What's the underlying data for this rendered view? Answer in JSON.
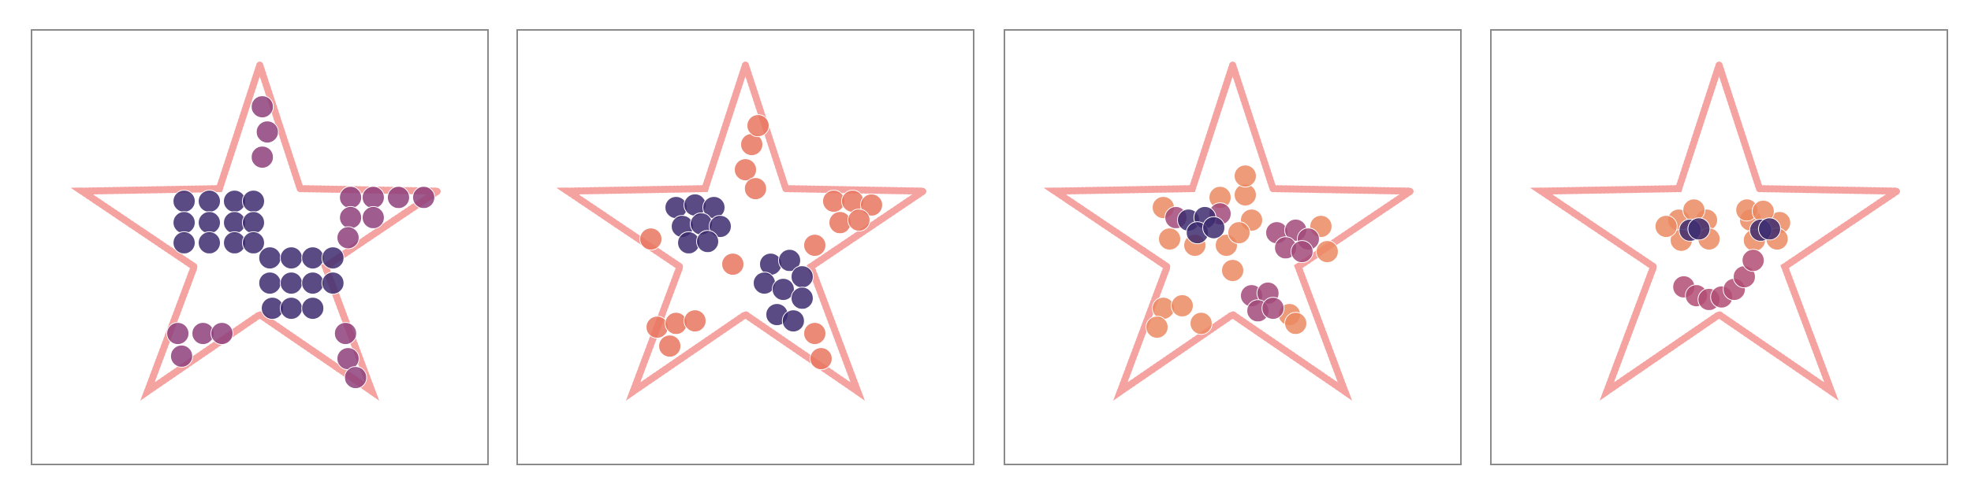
{
  "chart_data": [
    {
      "type": "scatter",
      "xlim": [
        -1.81,
        1.81
      ],
      "ylim": [
        -1.74,
        1.71
      ],
      "series": [
        {
          "type": "line",
          "color": "#f5a3a0",
          "x": [
            0,
            0.32,
            1.41,
            0.52,
            0.89,
            0,
            -0.89,
            -0.52,
            -1.41,
            -0.32,
            0
          ],
          "y": [
            1.43,
            0.45,
            0.43,
            -0.17,
            -1.16,
            -0.55,
            -1.16,
            -0.17,
            0.43,
            0.45,
            1.43
          ]
        },
        {
          "type": "scatter",
          "color": "#8e3f7b",
          "x": [
            0.72,
            0.9,
            1.1,
            1.3,
            0.72,
            0.9,
            0.7,
            0.02,
            0.06,
            0.02,
            -0.65,
            -0.45,
            -0.3,
            -0.62,
            0.68,
            0.7,
            0.76
          ],
          "y": [
            0.38,
            0.38,
            0.38,
            0.38,
            0.22,
            0.22,
            0.06,
            1.1,
            0.9,
            0.7,
            -0.7,
            -0.7,
            -0.7,
            -0.88,
            -0.7,
            -0.9,
            -1.05
          ]
        },
        {
          "type": "scatter",
          "color": "#3d2b6e",
          "x": [
            -0.6,
            -0.4,
            -0.2,
            -0.05,
            -0.6,
            -0.4,
            -0.2,
            -0.05,
            -0.6,
            -0.4,
            -0.2,
            -0.05,
            0.08,
            0.25,
            0.42,
            0.58,
            0.08,
            0.25,
            0.42,
            0.58,
            0.1,
            0.25,
            0.42
          ],
          "y": [
            0.35,
            0.35,
            0.35,
            0.35,
            0.18,
            0.18,
            0.18,
            0.18,
            0.02,
            0.02,
            0.02,
            0.02,
            -0.1,
            -0.1,
            -0.1,
            -0.1,
            -0.3,
            -0.3,
            -0.3,
            -0.3,
            -0.5,
            -0.5,
            -0.5
          ]
        }
      ]
    },
    {
      "type": "scatter",
      "xlim": [
        -1.81,
        1.81
      ],
      "ylim": [
        -1.74,
        1.71
      ],
      "series": [
        {
          "type": "line",
          "color": "#f5a3a0",
          "x": [
            0,
            0.32,
            1.41,
            0.52,
            0.89,
            0,
            -0.89,
            -0.52,
            -1.41,
            -0.32,
            0
          ],
          "y": [
            1.43,
            0.45,
            0.43,
            -0.17,
            -1.16,
            -0.55,
            -1.16,
            -0.17,
            0.43,
            0.45,
            1.43
          ]
        },
        {
          "type": "scatter",
          "color": "#e8755f",
          "x": [
            0.7,
            0.85,
            1.0,
            0.75,
            0.9,
            0.0,
            0.05,
            0.1,
            0.08,
            -0.7,
            -0.55,
            -0.4,
            -0.6,
            0.55,
            0.6,
            -0.75,
            -0.1,
            0.55
          ],
          "y": [
            0.35,
            0.35,
            0.32,
            0.18,
            0.2,
            0.6,
            0.8,
            0.95,
            0.45,
            -0.65,
            -0.62,
            -0.6,
            -0.8,
            -0.7,
            -0.9,
            0.05,
            -0.15,
            0.0
          ]
        },
        {
          "type": "scatter",
          "color": "#3d2b6e",
          "x": [
            -0.55,
            -0.4,
            -0.25,
            -0.5,
            -0.35,
            -0.2,
            -0.45,
            -0.3,
            0.2,
            0.35,
            0.45,
            0.15,
            0.3,
            0.45,
            0.25,
            0.38
          ],
          "y": [
            0.3,
            0.32,
            0.3,
            0.15,
            0.17,
            0.15,
            0.02,
            0.03,
            -0.15,
            -0.12,
            -0.25,
            -0.3,
            -0.35,
            -0.42,
            -0.55,
            -0.6
          ]
        }
      ]
    },
    {
      "type": "scatter",
      "xlim": [
        -1.81,
        1.81
      ],
      "ylim": [
        -1.74,
        1.71
      ],
      "series": [
        {
          "type": "line",
          "color": "#f5a3a0",
          "x": [
            0,
            0.32,
            1.41,
            0.52,
            0.89,
            0,
            -0.89,
            -0.52,
            -1.41,
            -0.32,
            0
          ],
          "y": [
            1.43,
            0.45,
            0.43,
            -0.17,
            -1.16,
            -0.55,
            -1.16,
            -0.17,
            0.43,
            0.45,
            1.43
          ]
        },
        {
          "type": "scatter",
          "color": "#eb8a62",
          "x": [
            -0.55,
            -0.5,
            -0.3,
            -0.05,
            0.1,
            0.15,
            0.05,
            0.0,
            0.7,
            0.75,
            -0.55,
            -0.4,
            -0.25,
            -0.6,
            0.45,
            0.5,
            -0.1,
            0.1
          ],
          "y": [
            0.3,
            0.05,
            0.0,
            0.0,
            0.4,
            0.2,
            0.1,
            -0.2,
            0.15,
            -0.05,
            -0.5,
            -0.48,
            -0.62,
            -0.65,
            -0.55,
            -0.62,
            0.38,
            0.55
          ]
        },
        {
          "type": "scatter",
          "color": "#a24a7a",
          "x": [
            0.35,
            0.5,
            0.6,
            0.42,
            0.55,
            0.15,
            0.28,
            0.2,
            0.32,
            -0.45,
            -0.1
          ],
          "y": [
            0.1,
            0.12,
            0.05,
            -0.02,
            -0.05,
            -0.4,
            -0.38,
            -0.52,
            -0.5,
            0.22,
            0.25
          ]
        },
        {
          "type": "scatter",
          "color": "#3d2b6e",
          "x": [
            -0.35,
            -0.22,
            -0.28,
            -0.15
          ],
          "y": [
            0.2,
            0.22,
            0.1,
            0.14
          ]
        }
      ]
    },
    {
      "type": "scatter",
      "xlim": [
        -1.81,
        1.81
      ],
      "ylim": [
        -1.74,
        1.71
      ],
      "series": [
        {
          "type": "line",
          "color": "#f5a3a0",
          "x": [
            0,
            0.32,
            1.41,
            0.52,
            0.89,
            0,
            -0.89,
            -0.52,
            -1.41,
            -0.32,
            0
          ],
          "y": [
            1.43,
            0.45,
            0.43,
            -0.17,
            -1.16,
            -0.55,
            -1.16,
            -0.17,
            0.43,
            0.45,
            1.43
          ]
        },
        {
          "type": "scatter",
          "color": "#eb8a62",
          "x": [
            -0.32,
            -0.3,
            -0.1,
            -0.08,
            0.25,
            0.28,
            0.48,
            0.46,
            -0.42,
            0.22,
            0.35,
            -0.2
          ],
          "y": [
            0.2,
            0.04,
            0.2,
            0.05,
            0.2,
            0.04,
            0.18,
            0.05,
            0.15,
            0.28,
            0.27,
            0.28
          ]
        },
        {
          "type": "scatter",
          "color": "#b24e74",
          "x": [
            -0.28,
            -0.18,
            -0.08,
            0.02,
            0.12,
            0.2,
            0.27
          ],
          "y": [
            -0.33,
            -0.4,
            -0.43,
            -0.41,
            -0.35,
            -0.25,
            -0.12
          ]
        },
        {
          "type": "scatter",
          "color": "#3d2b6e",
          "x": [
            -0.23,
            -0.16,
            0.33,
            0.4
          ],
          "y": [
            0.12,
            0.13,
            0.12,
            0.13
          ]
        }
      ]
    }
  ]
}
